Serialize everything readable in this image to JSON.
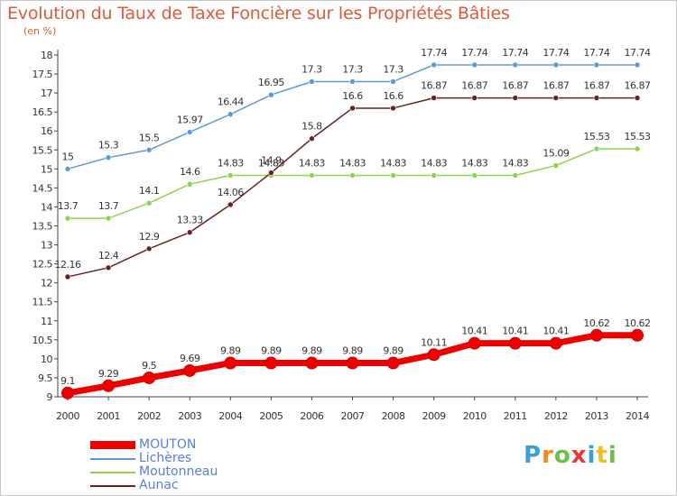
{
  "header": {
    "title": "Evolution du Taux de Taxe Foncière sur les Propriétés Bâties",
    "unit": "(en %)"
  },
  "brand": {
    "letters": [
      "P",
      "r",
      "o",
      "x",
      "i",
      "t",
      "i"
    ],
    "colors": [
      "#3aa0d8",
      "#f08a1a",
      "#6cc04a",
      "#e63a3a",
      "#3aa0d8",
      "#f0c020",
      "#6cc04a"
    ]
  },
  "chart_data": {
    "type": "line",
    "title": "Evolution du Taux de Taxe Foncière sur les Propriétés Bâties",
    "ylabel": "(en %)",
    "x": [
      "2000",
      "2001",
      "2002",
      "2003",
      "2004",
      "2005",
      "2006",
      "2007",
      "2008",
      "2009",
      "2010",
      "2011",
      "2012",
      "2013",
      "2014"
    ],
    "ylim": [
      9,
      18
    ],
    "yticks": [
      "9",
      "9.5",
      "10",
      "10.5",
      "11",
      "11.5",
      "12",
      "12.5",
      "13",
      "13.5",
      "14",
      "14.5",
      "15",
      "15.5",
      "16",
      "16.5",
      "17",
      "17.5",
      "18"
    ],
    "grid": false,
    "legend_position": "bottom-left",
    "series": [
      {
        "name": "MOUTON",
        "color": "#ee0000",
        "labels": [
          "9.1",
          "9.29",
          "9.5",
          "9.69",
          "9.89",
          "9.89",
          "9.89",
          "9.89",
          "9.89",
          "10.11",
          "10.41",
          "10.41",
          "10.41",
          "10.62",
          "10.62"
        ],
        "values": [
          9.1,
          9.29,
          9.5,
          9.69,
          9.89,
          9.89,
          9.89,
          9.89,
          9.89,
          10.11,
          10.41,
          10.41,
          10.41,
          10.62,
          10.62
        ]
      },
      {
        "name": "Lichères",
        "color": "#5b9bd5",
        "labels": [
          "15",
          "15.3",
          "15.5",
          "15.97",
          "16.44",
          "16.95",
          "17.3",
          "17.3",
          "17.3",
          "17.74",
          "17.74",
          "17.74",
          "17.74",
          "17.74",
          "17.74"
        ],
        "values": [
          15,
          15.3,
          15.5,
          15.97,
          16.44,
          16.95,
          17.3,
          17.3,
          17.3,
          17.74,
          17.74,
          17.74,
          17.74,
          17.74,
          17.74
        ]
      },
      {
        "name": "Moutonneau",
        "color": "#8cd44a",
        "labels": [
          "13.7",
          "13.7",
          "14.1",
          "14.6",
          "14.83",
          "14.83",
          "14.83",
          "14.83",
          "14.83",
          "14.83",
          "14.83",
          "14.83",
          "15.09",
          "15.53",
          "15.53"
        ],
        "values": [
          13.7,
          13.7,
          14.1,
          14.6,
          14.83,
          14.83,
          14.83,
          14.83,
          14.83,
          14.83,
          14.83,
          14.83,
          15.09,
          15.53,
          15.53
        ]
      },
      {
        "name": "Aunac",
        "color": "#6b1f1f",
        "labels": [
          "12.16",
          "12.4",
          "12.9",
          "13.33",
          "14.06",
          "14.9",
          "15.8",
          "16.6",
          "16.6",
          "16.87",
          "16.87",
          "16.87",
          "16.87",
          "16.87",
          "16.87"
        ],
        "values": [
          12.16,
          12.4,
          12.9,
          13.33,
          14.06,
          14.9,
          15.8,
          16.6,
          16.6,
          16.87,
          16.87,
          16.87,
          16.87,
          16.87,
          16.87
        ]
      }
    ]
  }
}
